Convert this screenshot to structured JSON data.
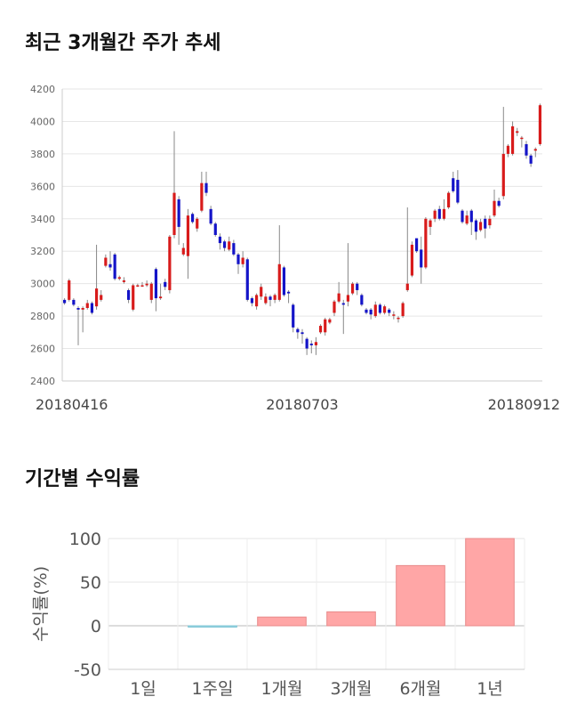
{
  "sections": {
    "price_title": "최근 3개월간 주가 추세",
    "return_title": "기간별 수익률"
  },
  "chart_data": [
    {
      "type": "candlestick",
      "title": "최근 3개월간 주가 추세",
      "ylim": [
        2400,
        4200
      ],
      "yticks": [
        2400,
        2600,
        2800,
        3000,
        3200,
        3400,
        3600,
        3800,
        4000,
        4200
      ],
      "xtick_labels": [
        {
          "label": "20180416",
          "index": 0
        },
        {
          "label": "20180703",
          "index": 52
        },
        {
          "label": "20180912",
          "index": 100
        }
      ],
      "grid": true,
      "colors": {
        "up": "#d81b1b",
        "down": "#1414c8",
        "wick": "#888888"
      },
      "candles": [
        [
          2900,
          2880,
          2910,
          2870
        ],
        [
          2900,
          3020,
          3030,
          2890
        ],
        [
          2900,
          2870,
          2910,
          2860
        ],
        [
          2850,
          2840,
          2860,
          2620
        ],
        [
          2840,
          2850,
          2860,
          2700
        ],
        [
          2850,
          2880,
          2900,
          2840
        ],
        [
          2880,
          2820,
          2890,
          2810
        ],
        [
          2860,
          2970,
          3240,
          2840
        ],
        [
          2900,
          2930,
          2960,
          2890
        ],
        [
          3110,
          3160,
          3180,
          3100
        ],
        [
          3120,
          3100,
          3200,
          3080
        ],
        [
          3180,
          3030,
          3190,
          3020
        ],
        [
          3030,
          3040,
          3050,
          3020
        ],
        [
          3010,
          3020,
          3040,
          3000
        ],
        [
          2960,
          2900,
          2970,
          2880
        ],
        [
          2840,
          2990,
          3000,
          2830
        ],
        [
          2990,
          2990,
          3000,
          2980
        ],
        [
          2990,
          2990,
          3010,
          2980
        ],
        [
          2990,
          3000,
          3020,
          2980
        ],
        [
          2900,
          3000,
          3010,
          2880
        ],
        [
          3090,
          2910,
          3100,
          2830
        ],
        [
          2910,
          2920,
          3000,
          2900
        ],
        [
          3010,
          2980,
          3030,
          2960
        ],
        [
          2960,
          3290,
          3300,
          2940
        ],
        [
          3300,
          3560,
          3940,
          3280
        ],
        [
          3520,
          3350,
          3540,
          3240
        ],
        [
          3180,
          3220,
          3250,
          3170
        ],
        [
          3170,
          3420,
          3460,
          3030
        ],
        [
          3430,
          3380,
          3440,
          3370
        ],
        [
          3340,
          3400,
          3410,
          3320
        ],
        [
          3450,
          3620,
          3690,
          3440
        ],
        [
          3620,
          3560,
          3690,
          3540
        ],
        [
          3460,
          3370,
          3480,
          3360
        ],
        [
          3370,
          3300,
          3380,
          3290
        ],
        [
          3290,
          3250,
          3310,
          3210
        ],
        [
          3260,
          3220,
          3270,
          3200
        ],
        [
          3210,
          3260,
          3290,
          3200
        ],
        [
          3250,
          3180,
          3270,
          3170
        ],
        [
          3180,
          3120,
          3190,
          3060
        ],
        [
          3120,
          3160,
          3200,
          3100
        ],
        [
          3150,
          2900,
          3160,
          2890
        ],
        [
          2910,
          2880,
          2920,
          2860
        ],
        [
          2860,
          2930,
          2940,
          2840
        ],
        [
          2920,
          2980,
          3000,
          2900
        ],
        [
          2880,
          2920,
          2940,
          2870
        ],
        [
          2920,
          2900,
          2930,
          2860
        ],
        [
          2900,
          2930,
          2940,
          2880
        ],
        [
          2900,
          3120,
          3360,
          2890
        ],
        [
          3100,
          2930,
          3110,
          2920
        ],
        [
          2950,
          2940,
          2960,
          2880
        ],
        [
          2870,
          2730,
          2880,
          2700
        ],
        [
          2720,
          2700,
          2730,
          2660
        ],
        [
          2700,
          2690,
          2720,
          2630
        ],
        [
          2660,
          2600,
          2670,
          2560
        ],
        [
          2630,
          2620,
          2650,
          2570
        ],
        [
          2620,
          2640,
          2670,
          2560
        ],
        [
          2700,
          2740,
          2750,
          2690
        ],
        [
          2700,
          2780,
          2790,
          2680
        ],
        [
          2760,
          2780,
          2790,
          2750
        ],
        [
          2820,
          2890,
          2900,
          2800
        ],
        [
          2890,
          2940,
          3010,
          2880
        ],
        [
          2880,
          2870,
          2900,
          2690
        ],
        [
          2890,
          2930,
          3250,
          2860
        ],
        [
          2940,
          3000,
          3010,
          2930
        ],
        [
          3000,
          2960,
          3010,
          2930
        ],
        [
          2930,
          2870,
          2940,
          2860
        ],
        [
          2840,
          2820,
          2850,
          2810
        ],
        [
          2840,
          2810,
          2850,
          2780
        ],
        [
          2800,
          2870,
          2890,
          2790
        ],
        [
          2870,
          2820,
          2880,
          2810
        ],
        [
          2820,
          2860,
          2870,
          2810
        ],
        [
          2840,
          2820,
          2850,
          2800
        ],
        [
          2810,
          2810,
          2830,
          2780
        ],
        [
          2790,
          2790,
          2800,
          2760
        ],
        [
          2800,
          2880,
          2890,
          2790
        ],
        [
          2960,
          3000,
          3470,
          2950
        ],
        [
          3050,
          3240,
          3260,
          3040
        ],
        [
          3280,
          3200,
          3270,
          3190
        ],
        [
          3210,
          3100,
          3290,
          3000
        ],
        [
          3100,
          3400,
          3410,
          3090
        ],
        [
          3350,
          3390,
          3400,
          3300
        ],
        [
          3400,
          3450,
          3460,
          3380
        ],
        [
          3460,
          3400,
          3480,
          3390
        ],
        [
          3400,
          3460,
          3520,
          3390
        ],
        [
          3470,
          3560,
          3570,
          3460
        ],
        [
          3650,
          3570,
          3690,
          3560
        ],
        [
          3640,
          3500,
          3700,
          3490
        ],
        [
          3450,
          3380,
          3460,
          3370
        ],
        [
          3370,
          3420,
          3450,
          3360
        ],
        [
          3450,
          3380,
          3460,
          3300
        ],
        [
          3390,
          3320,
          3400,
          3270
        ],
        [
          3330,
          3380,
          3400,
          3320
        ],
        [
          3400,
          3340,
          3420,
          3280
        ],
        [
          3360,
          3400,
          3420,
          3340
        ],
        [
          3420,
          3510,
          3580,
          3410
        ],
        [
          3510,
          3480,
          3530,
          3470
        ],
        [
          3540,
          3800,
          4090,
          3520
        ],
        [
          3800,
          3850,
          3860,
          3780
        ],
        [
          3800,
          3970,
          4000,
          3790
        ],
        [
          3930,
          3940,
          3960,
          3910
        ],
        [
          3900,
          3900,
          3910,
          3840
        ],
        [
          3860,
          3790,
          3880,
          3770
        ],
        [
          3790,
          3740,
          3800,
          3720
        ],
        [
          3820,
          3830,
          3840,
          3780
        ],
        [
          3860,
          4100,
          4110,
          3850
        ]
      ]
    },
    {
      "type": "bar",
      "title": "기간별 수익률",
      "ylabel": "수익률(%)",
      "categories": [
        "1일",
        "1주일",
        "1개월",
        "3개월",
        "6개월",
        "1년"
      ],
      "values": [
        0,
        -1.5,
        10,
        16,
        69,
        100
      ],
      "ylim": [
        -50,
        100
      ],
      "yticks": [
        -50,
        0,
        50,
        100
      ],
      "grid": true,
      "colors": {
        "positive": "#ffa6a6",
        "positive_stroke": "#e88a8a",
        "negative": "#a8dde8",
        "negative_stroke": "#7cc4d4"
      }
    }
  ]
}
